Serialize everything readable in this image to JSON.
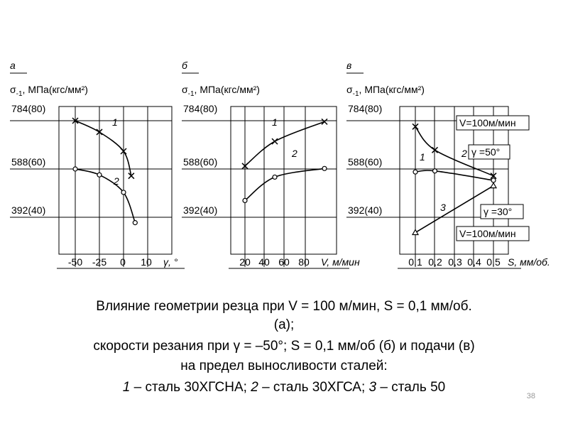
{
  "chart_data": [
    {
      "type": "line",
      "panel_label": "а",
      "ylabel": "σ-1, МПа(кгс/мм²)",
      "yticks": [
        "784(80)",
        "588(60)",
        "392(40)"
      ],
      "xticks": [
        "-50",
        "-25",
        "0",
        "10"
      ],
      "xlabel": "γ, °",
      "series": [
        {
          "name": "1",
          "marker": "x",
          "x": [
            -50,
            -25,
            0,
            8
          ],
          "y": [
            784,
            738,
            660,
            560
          ]
        },
        {
          "name": "2",
          "marker": "o",
          "x": [
            -50,
            -25,
            0,
            12
          ],
          "y": [
            588,
            564,
            493,
            370
          ]
        }
      ]
    },
    {
      "type": "line",
      "panel_label": "б",
      "ylabel": "σ-1, МПа(кгс/мм²)",
      "yticks": [
        "784(80)",
        "588(60)",
        "392(40)"
      ],
      "xticks": [
        "20",
        "40",
        "60",
        "80"
      ],
      "xlabel": "V, м/мин",
      "series": [
        {
          "name": "1",
          "marker": "x",
          "x": [
            20,
            50,
            100
          ],
          "y": [
            600,
            700,
            780
          ]
        },
        {
          "name": "2",
          "marker": "o",
          "x": [
            20,
            50,
            100
          ],
          "y": [
            460,
            555,
            590
          ]
        }
      ]
    },
    {
      "type": "line",
      "panel_label": "в",
      "ylabel": "σ-1, МПа(кгс/мм²)",
      "yticks": [
        "784(80)",
        "588(60)",
        "392(40)"
      ],
      "xticks": [
        "0,1",
        "0,2",
        "0,3",
        "0,4",
        "0,5"
      ],
      "xlabel": "S, мм/об.",
      "series": [
        {
          "name": "1",
          "marker": "x",
          "x": [
            0.1,
            0.2,
            0.5
          ],
          "y": [
            760,
            665,
            560
          ]
        },
        {
          "name": "2",
          "marker": "o",
          "x": [
            0.1,
            0.2,
            0.5
          ],
          "y": [
            576,
            580,
            542
          ]
        },
        {
          "name": "3",
          "marker": "triangle",
          "x": [
            0.1,
            0.5
          ],
          "y": [
            330,
            520
          ]
        }
      ],
      "annotations": [
        "V=100м/мин",
        "γ =50°",
        "γ =30°",
        "V=100м/мин"
      ]
    }
  ],
  "caption": {
    "line1": "Влияние геометрии резца при V = 100 м/мин, S = 0,1 мм/об.",
    "line2": "(а);",
    "line3": "скорости резания при γ = –50°; S = 0,1 мм/об (б) и подачи (в)",
    "line4": "на предел  выносливости сталей:",
    "line5_n1": "1",
    "line5_t1": " – сталь 30ХГСНА; ",
    "line5_n2": "2",
    "line5_t2": " – сталь 30ХГСА; ",
    "line5_n3": "3",
    "line5_t3": " – сталь 50"
  },
  "page_number": "38"
}
